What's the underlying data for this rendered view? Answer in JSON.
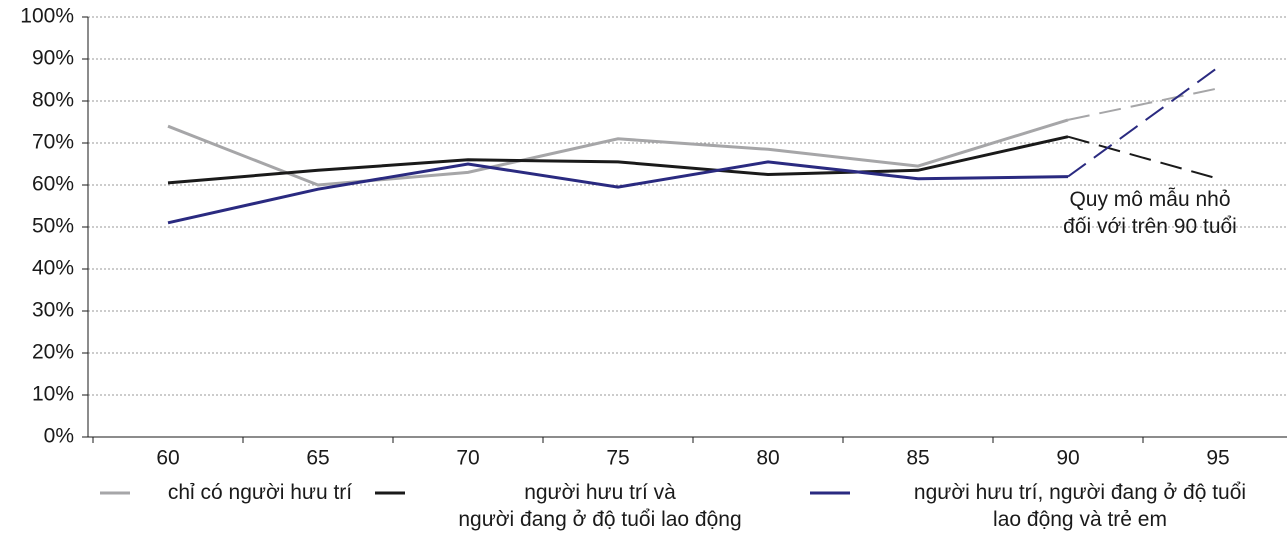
{
  "chart_data": {
    "type": "line",
    "categories": [
      "60",
      "65",
      "70",
      "75",
      "80",
      "85",
      "90",
      "95"
    ],
    "series": [
      {
        "name": "chỉ có người hưu trí",
        "color": "#a6a6a8",
        "values": [
          74,
          60,
          63,
          71,
          68.5,
          64.5,
          75.5,
          83
        ]
      },
      {
        "name": "người hưu trí và\nngười đang ở độ tuổi lao động",
        "color": "#1a1a1a",
        "values": [
          60.5,
          63.5,
          66,
          65.5,
          62.5,
          63.5,
          71.5,
          61.5
        ]
      },
      {
        "name": "người hưu trí, người đang ở độ tuổi\nlao động và trẻ em",
        "color": "#2a2a80",
        "values": [
          51,
          59,
          65,
          59.5,
          65.5,
          61.5,
          62,
          88
        ]
      }
    ],
    "dash_from_index": 6,
    "annotation": "Quy mô mẫu nhỏ\nđối với trên 90 tuổi",
    "ylim": [
      0,
      100
    ],
    "yticks": [
      {
        "value": 0,
        "label": "0%"
      },
      {
        "value": 10,
        "label": "10%"
      },
      {
        "value": 20,
        "label": "20%"
      },
      {
        "value": 30,
        "label": "30%"
      },
      {
        "value": 40,
        "label": "40%"
      },
      {
        "value": 50,
        "label": "50%"
      },
      {
        "value": 60,
        "label": "60%"
      },
      {
        "value": 70,
        "label": "70%"
      },
      {
        "value": 80,
        "label": "80%"
      },
      {
        "value": 90,
        "label": "90%"
      },
      {
        "value": 100,
        "label": "100%"
      }
    ],
    "grid": true
  }
}
